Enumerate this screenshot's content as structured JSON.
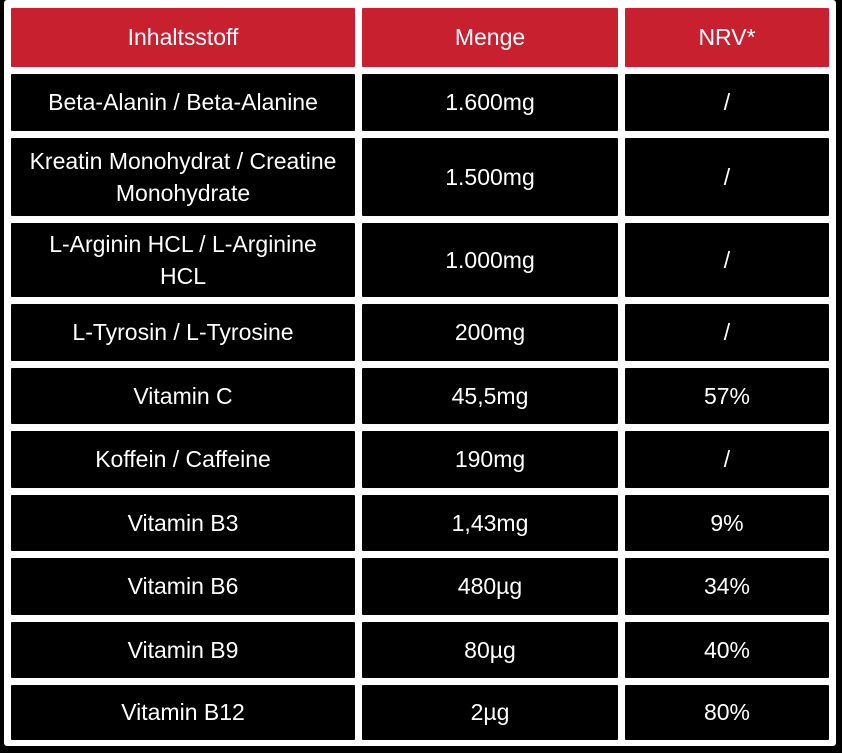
{
  "table": {
    "headers": {
      "ingredient": "Inhaltsstoff",
      "amount": "Menge",
      "nrv": "NRV*"
    },
    "rows": [
      {
        "name": "Beta-Alanin / Beta-Alanine",
        "amount": "1.600mg",
        "nrv": "/"
      },
      {
        "name": "Kreatin Monohydrat / Creatine Monohydrate",
        "amount": "1.500mg",
        "nrv": "/"
      },
      {
        "name": "L-Arginin HCL / L-Arginine HCL",
        "amount": "1.000mg",
        "nrv": "/"
      },
      {
        "name": "L-Tyrosin / L-Tyrosine",
        "amount": "200mg",
        "nrv": "/"
      },
      {
        "name": "Vitamin C",
        "amount": "45,5mg",
        "nrv": "57%"
      },
      {
        "name": "Koffein / Caffeine",
        "amount": "190mg",
        "nrv": "/"
      },
      {
        "name": "Vitamin B3",
        "amount": "1,43mg",
        "nrv": "9%"
      },
      {
        "name": "Vitamin B6",
        "amount": "480µg",
        "nrv": "34%"
      },
      {
        "name": "Vitamin B9",
        "amount": "80µg",
        "nrv": "40%"
      },
      {
        "name": "Vitamin B12",
        "amount": "2µg",
        "nrv": "80%"
      }
    ]
  },
  "colors": {
    "header_red": "#C92030",
    "cell_black": "#000000",
    "text_white": "#FFFFFF",
    "gutter_white": "#FFFFFF"
  }
}
